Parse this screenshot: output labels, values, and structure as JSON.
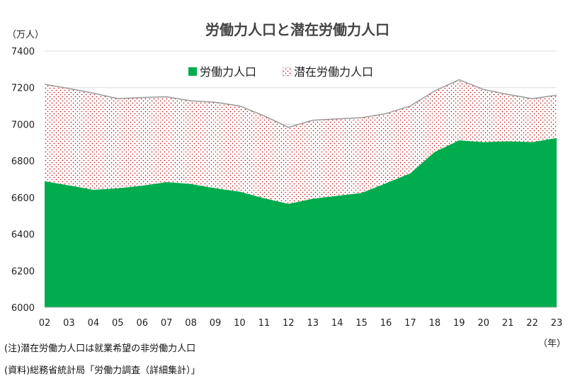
{
  "chart_data": {
    "type": "area",
    "title": "労働力人口と潜在労働力人口",
    "ylabel": "（万人）",
    "xlabel": "（年）",
    "ylim": [
      6000,
      7400
    ],
    "yticks": [
      6000,
      6200,
      6400,
      6600,
      6800,
      7000,
      7200,
      7400
    ],
    "stacked": true,
    "legend_position": "top-center",
    "grid": true,
    "categories": [
      "02",
      "03",
      "04",
      "05",
      "06",
      "07",
      "08",
      "09",
      "10",
      "11",
      "12",
      "13",
      "14",
      "15",
      "16",
      "17",
      "18",
      "19",
      "20",
      "21",
      "22",
      "23"
    ],
    "series": [
      {
        "name": "労働力人口",
        "color": "#00AC4E",
        "fill": "solid",
        "values": [
          6689,
          6666,
          6642,
          6650,
          6664,
          6684,
          6674,
          6650,
          6632,
          6596,
          6565,
          6593,
          6609,
          6625,
          6678,
          6732,
          6849,
          6912,
          6902,
          6907,
          6902,
          6925
        ]
      },
      {
        "name": "潜在労働力人口",
        "color": "#C00000",
        "fill": "dotted",
        "total_values": [
          7218,
          7195,
          7170,
          7140,
          7146,
          7150,
          7128,
          7120,
          7100,
          7046,
          6983,
          7022,
          7029,
          7036,
          7058,
          7100,
          7182,
          7243,
          7190,
          7163,
          7140,
          7159
        ]
      }
    ]
  },
  "notes": {
    "note1": "(注)潜在労働力人口は就業希望の非労働力人口",
    "note2": "(資料)総務省統計局「労働力調査（詳細集計）」"
  }
}
